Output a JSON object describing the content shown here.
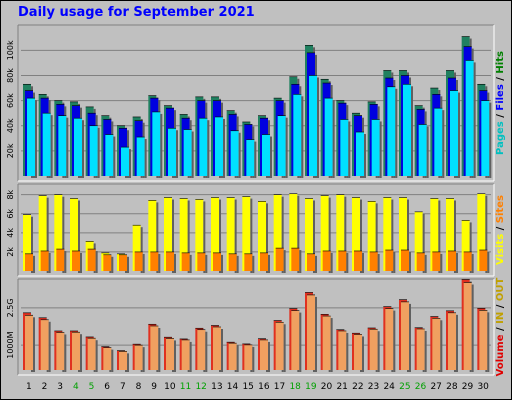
{
  "chart_data": {
    "title": "Daily usage for September 2021",
    "type": "bar",
    "days": [
      1,
      2,
      3,
      4,
      5,
      6,
      7,
      8,
      9,
      10,
      11,
      12,
      13,
      14,
      15,
      16,
      17,
      18,
      19,
      20,
      21,
      22,
      23,
      24,
      25,
      26,
      27,
      28,
      29,
      30
    ],
    "weekend_days": [
      4,
      5,
      11,
      12,
      18,
      19,
      25,
      26
    ],
    "colors": {
      "pages": "#00e0ff",
      "files": "#0000e0",
      "hits": "#208060",
      "visits": "#ffff00",
      "sites": "#ff8000",
      "volume": "#e03020",
      "in": "#f0a060",
      "out": "#c0a000",
      "panel": "#c0c0c0",
      "grid": "#808080",
      "weekday_label": "#000000",
      "weekend_label": "#00a000"
    },
    "panels": [
      {
        "id": "hits",
        "legend": [
          {
            "text": "Pages",
            "color": "#00c0c0"
          },
          {
            "text": " / ",
            "color": "#000000"
          },
          {
            "text": "Files",
            "color": "#0000ff"
          },
          {
            "text": " / ",
            "color": "#000000"
          },
          {
            "text": "Hits",
            "color": "#008000"
          }
        ],
        "ticks": [
          "20k",
          "40k",
          "60k",
          "80k",
          "100k"
        ],
        "tick_values": [
          20000,
          40000,
          60000,
          80000,
          100000
        ],
        "ylim": [
          0,
          117000
        ],
        "series": [
          {
            "name": "Hits",
            "key": "hits",
            "values": [
              73000,
              65000,
              60000,
              59000,
              55000,
              48000,
              40000,
              47000,
              64000,
              56000,
              49000,
              63000,
              63000,
              52000,
              43000,
              48000,
              62000,
              79000,
              104000,
              77000,
              60000,
              50000,
              59000,
              84000,
              84000,
              56000,
              70000,
              84000,
              111000,
              73000
            ]
          },
          {
            "name": "Files",
            "key": "files",
            "values": [
              68000,
              62000,
              57000,
              56000,
              50000,
              45000,
              38000,
              44000,
              62000,
              54000,
              46000,
              60000,
              60000,
              49000,
              41000,
              46000,
              60000,
              73000,
              98000,
              74000,
              58000,
              48000,
              57000,
              78000,
              80000,
              53000,
              65000,
              78000,
              103000,
              68000
            ]
          },
          {
            "name": "Pages",
            "key": "pages",
            "values": [
              62000,
              50000,
              48000,
              46000,
              40000,
              33000,
              23000,
              31000,
              51000,
              38000,
              37000,
              46000,
              47000,
              36000,
              29000,
              33000,
              48000,
              65000,
              80000,
              62000,
              45000,
              35000,
              45000,
              71000,
              73000,
              41000,
              54000,
              68000,
              92000,
              60000
            ]
          }
        ]
      },
      {
        "id": "visits",
        "legend": [
          {
            "text": "Visits",
            "color": "#ffff00"
          },
          {
            "text": " / ",
            "color": "#000000"
          },
          {
            "text": "Sites",
            "color": "#ff8000"
          }
        ],
        "ticks": [
          "2k",
          "4k",
          "6k",
          "8k"
        ],
        "tick_values": [
          2000,
          4000,
          6000,
          8000
        ],
        "ylim": [
          0,
          8700
        ],
        "series": [
          {
            "name": "Visits",
            "key": "visits",
            "values": [
              5900,
              7900,
              8000,
              7600,
              3100,
              1900,
              1800,
              4800,
              7400,
              7700,
              7600,
              7500,
              7700,
              7700,
              7800,
              7300,
              8000,
              8100,
              7600,
              7900,
              8000,
              7700,
              7300,
              7700,
              7700,
              6200,
              7600,
              7600,
              5300,
              8100
            ]
          },
          {
            "name": "Sites",
            "key": "sites",
            "values": [
              1800,
              2100,
              2300,
              2100,
              2300,
              1700,
              1700,
              2000,
              2000,
              2000,
              1900,
              1900,
              1900,
              1800,
              1800,
              1900,
              2400,
              2400,
              1800,
              2100,
              2100,
              2100,
              2000,
              2200,
              2200,
              1900,
              2000,
              2100,
              2000,
              2200
            ]
          }
        ]
      },
      {
        "id": "volume",
        "legend": [
          {
            "text": "Volume",
            "color": "#e00000"
          },
          {
            "text": " / ",
            "color": "#000000"
          },
          {
            "text": "IN",
            "color": "#c0a000"
          },
          {
            "text": " / ",
            "color": "#000000"
          },
          {
            "text": "OUT",
            "color": "#c0a000"
          }
        ],
        "ticks": [
          "1000M",
          "2.5G"
        ],
        "tick_values": [
          1000,
          2500
        ],
        "ylim": [
          0,
          3500
        ],
        "series": [
          {
            "name": "Volume",
            "key": "volume",
            "values": [
              2300,
              2100,
              1570,
              1570,
              1330,
              940,
              780,
              1040,
              1840,
              1320,
              1250,
              1680,
              1790,
              1120,
              1050,
              1260,
              1990,
              2470,
              3120,
              2240,
              1620,
              1480,
              1690,
              2550,
              2830,
              1700,
              2150,
              2380,
              3640,
              2480
            ]
          },
          {
            "name": "In",
            "key": "in",
            "values": [
              2200,
              2020,
              1510,
              1520,
              1280,
              900,
              750,
              1000,
              1770,
              1270,
              1210,
              1620,
              1730,
              1080,
              1010,
              1210,
              1920,
              2390,
              3020,
              2170,
              1570,
              1430,
              1640,
              2470,
              2740,
              1650,
              2080,
              2300,
              3520,
              2400
            ]
          }
        ]
      }
    ]
  }
}
